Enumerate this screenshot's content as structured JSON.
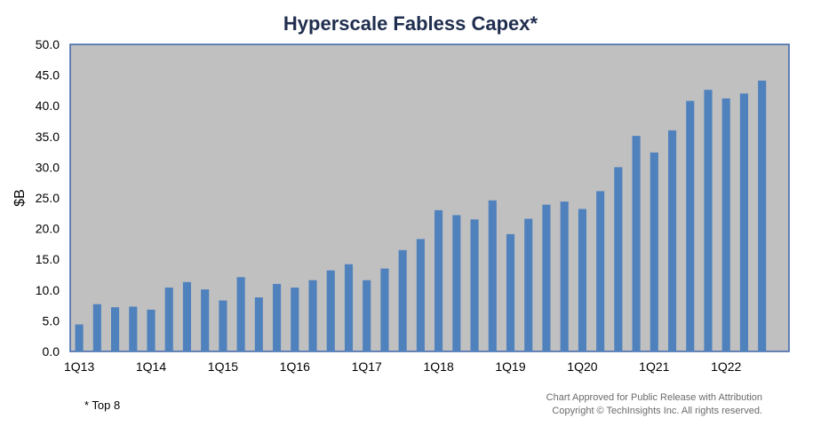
{
  "chart_data": {
    "type": "bar",
    "title": "Hyperscale Fabless Capex*",
    "ylabel": "$B",
    "ylim": [
      0,
      50
    ],
    "yticks": [
      "0.0",
      "5.0",
      "10.0",
      "15.0",
      "20.0",
      "25.0",
      "30.0",
      "35.0",
      "40.0",
      "45.0",
      "50.0"
    ],
    "grid": false,
    "colors": {
      "bar": "#4f81bd",
      "plot_bg": "#c0c0c0",
      "frame": "#3b64a8"
    },
    "xtick_labels": [
      "1Q13",
      "1Q14",
      "1Q15",
      "1Q16",
      "1Q17",
      "1Q18",
      "1Q19",
      "1Q20",
      "1Q21",
      "1Q22"
    ],
    "categories": [
      "1Q13",
      "2Q13",
      "3Q13",
      "4Q13",
      "1Q14",
      "2Q14",
      "3Q14",
      "4Q14",
      "1Q15",
      "2Q15",
      "3Q15",
      "4Q15",
      "1Q16",
      "2Q16",
      "3Q16",
      "4Q16",
      "1Q17",
      "2Q17",
      "3Q17",
      "4Q17",
      "1Q18",
      "2Q18",
      "3Q18",
      "4Q18",
      "1Q19",
      "2Q19",
      "3Q19",
      "4Q19",
      "1Q20",
      "2Q20",
      "3Q20",
      "4Q20",
      "1Q21",
      "2Q21",
      "3Q21",
      "4Q21",
      "1Q22",
      "2Q22",
      "3Q22",
      "4Q22"
    ],
    "values": [
      4.4,
      7.7,
      7.2,
      7.3,
      6.8,
      10.4,
      11.3,
      10.1,
      8.3,
      12.1,
      8.8,
      11.0,
      10.4,
      11.6,
      13.2,
      14.2,
      11.6,
      13.5,
      16.5,
      18.3,
      23.0,
      22.2,
      21.5,
      24.6,
      19.1,
      21.6,
      23.9,
      24.4,
      23.2,
      26.1,
      30.0,
      35.1,
      32.4,
      36.0,
      40.8,
      42.6,
      41.2,
      42.0,
      44.1,
      null
    ]
  },
  "footnote": "* Top 8",
  "attribution": {
    "line1": "Chart Approved for Public Release with Attribution",
    "line2": "Copyright © TechInsights Inc. All rights reserved."
  }
}
